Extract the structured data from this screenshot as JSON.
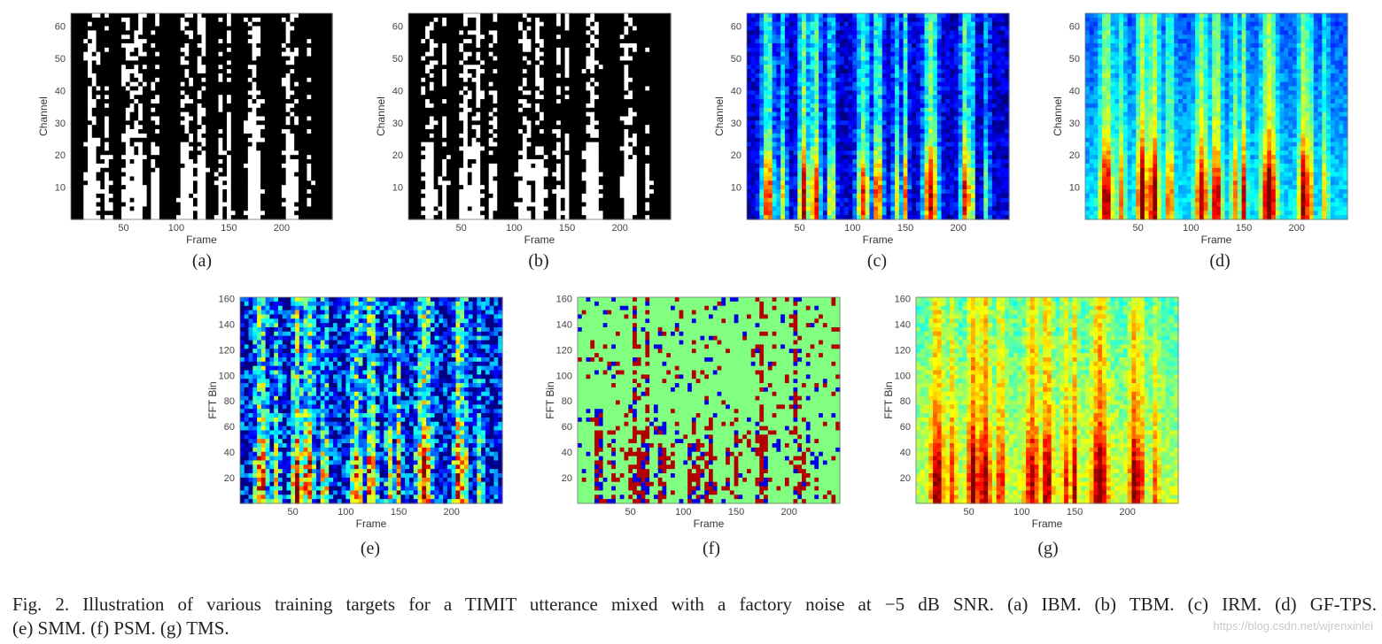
{
  "figure": {
    "caption_line1": "Fig. 2.    Illustration of various training targets for a TIMIT utterance mixed with a factory noise at −5 dB SNR. (a) IBM. (b) TBM. (c) IRM. (d) GF-TPS.",
    "caption_line2": "(e) SMM. (f) PSM. (g) TMS.",
    "watermark": "https://blog.csdn.net/wjrenxinlei"
  },
  "chart_data": [
    {
      "id": "a",
      "label": "(a)",
      "type": "heatmap",
      "colormap": "binary",
      "xlabel": "Frame",
      "ylabel": "Channel",
      "xticks": [
        50,
        100,
        150,
        200
      ],
      "yticks": [
        10,
        20,
        30,
        40,
        50,
        60
      ],
      "xlim": [
        0,
        248
      ],
      "ylim": [
        0,
        64
      ]
    },
    {
      "id": "b",
      "label": "(b)",
      "type": "heatmap",
      "colormap": "binary",
      "xlabel": "Frame",
      "ylabel": "Channel",
      "xticks": [
        50,
        100,
        150,
        200
      ],
      "yticks": [
        10,
        20,
        30,
        40,
        50,
        60
      ],
      "xlim": [
        0,
        248
      ],
      "ylim": [
        0,
        64
      ]
    },
    {
      "id": "c",
      "label": "(c)",
      "type": "heatmap",
      "colormap": "jet-ratio",
      "xlabel": "Frame",
      "ylabel": "Channel",
      "xticks": [
        50,
        100,
        150,
        200
      ],
      "yticks": [
        10,
        20,
        30,
        40,
        50,
        60
      ],
      "xlim": [
        0,
        248
      ],
      "ylim": [
        0,
        64
      ]
    },
    {
      "id": "d",
      "label": "(d)",
      "type": "heatmap",
      "colormap": "jet-gammatone",
      "xlabel": "Frame",
      "ylabel": "Channel",
      "xticks": [
        50,
        100,
        150,
        200
      ],
      "yticks": [
        10,
        20,
        30,
        40,
        50,
        60
      ],
      "xlim": [
        0,
        248
      ],
      "ylim": [
        0,
        64
      ]
    },
    {
      "id": "e",
      "label": "(e)",
      "type": "heatmap",
      "colormap": "jet-fft",
      "xlabel": "Frame",
      "ylabel": "FFT Bin",
      "xticks": [
        50,
        100,
        150,
        200
      ],
      "yticks": [
        20,
        40,
        60,
        80,
        100,
        120,
        140,
        160
      ],
      "xlim": [
        0,
        248
      ],
      "ylim": [
        0,
        161
      ]
    },
    {
      "id": "f",
      "label": "(f)",
      "type": "heatmap",
      "colormap": "jet-phase",
      "xlabel": "Frame",
      "ylabel": "FFT Bin",
      "xticks": [
        50,
        100,
        150,
        200
      ],
      "yticks": [
        20,
        40,
        60,
        80,
        100,
        120,
        140,
        160
      ],
      "xlim": [
        0,
        248
      ],
      "ylim": [
        0,
        161
      ]
    },
    {
      "id": "g",
      "label": "(g)",
      "type": "heatmap",
      "colormap": "jet-spectrum",
      "xlabel": "Frame",
      "ylabel": "FFT Bin",
      "xticks": [
        50,
        100,
        150,
        200
      ],
      "yticks": [
        20,
        40,
        60,
        80,
        100,
        120,
        140,
        160
      ],
      "xlim": [
        0,
        248
      ],
      "ylim": [
        0,
        161
      ]
    }
  ]
}
